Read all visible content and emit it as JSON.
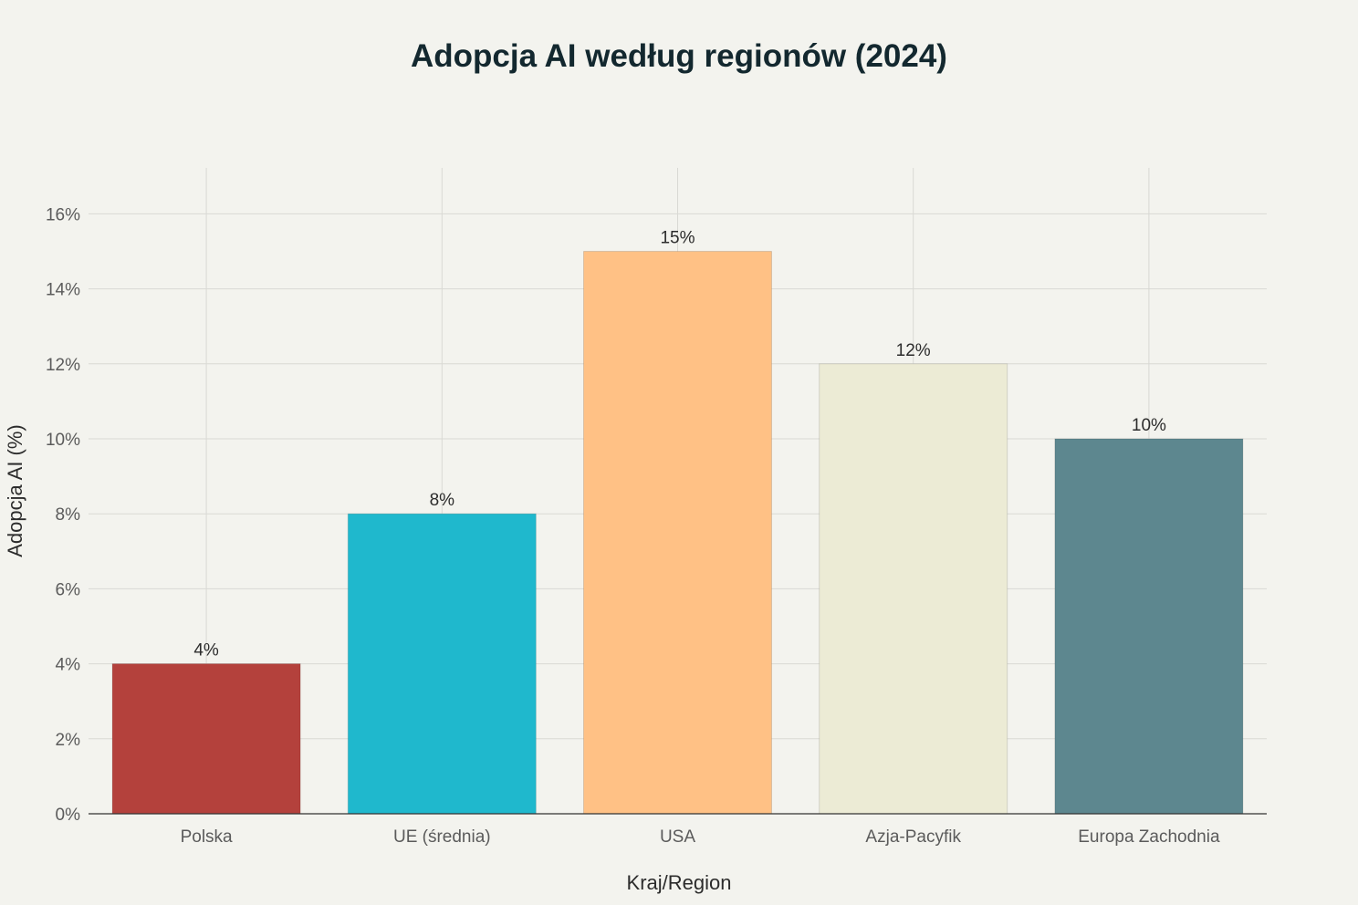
{
  "chart_data": {
    "type": "bar",
    "title": "Adopcja AI według regionów (2024)",
    "xlabel": "Kraj/Region",
    "ylabel": "Adopcja AI (%)",
    "categories": [
      "Polska",
      "UE (średnia)",
      "USA",
      "Azja-Pacyfik",
      "Europa Zachodnia"
    ],
    "values": [
      4,
      8,
      15,
      12,
      10
    ],
    "data_labels": [
      "4%",
      "8%",
      "15%",
      "12%",
      "10%"
    ],
    "colors": [
      "#b4413c",
      "#1fb8cd",
      "#ffc185",
      "#ecebd5",
      "#5d878f"
    ],
    "ylim": [
      0,
      17
    ],
    "yticks": [
      0,
      2,
      4,
      6,
      8,
      10,
      12,
      14,
      16
    ],
    "ytick_labels": [
      "0%",
      "2%",
      "4%",
      "6%",
      "8%",
      "10%",
      "12%",
      "14%",
      "16%"
    ],
    "grid": true,
    "legend": "none"
  }
}
